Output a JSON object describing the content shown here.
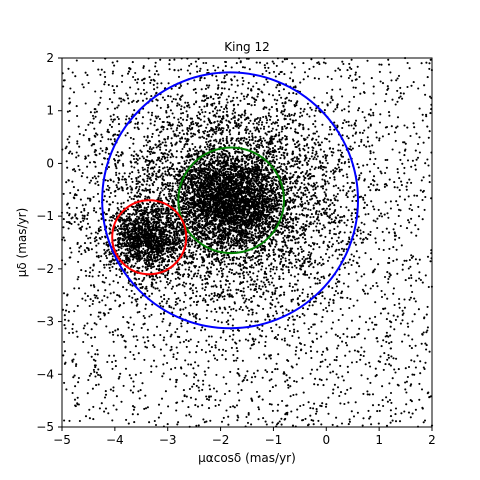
{
  "chart_data": {
    "type": "scatter",
    "title": "King 12",
    "xlabel": "μαcosδ (mas/yr)",
    "ylabel": "μδ (mas/yr)",
    "xlim": [
      -5,
      2
    ],
    "ylim": [
      -5,
      2
    ],
    "xticks": [
      -5,
      -4,
      -3,
      -2,
      -1,
      0,
      1,
      2
    ],
    "yticks": [
      -5,
      -4,
      -3,
      -2,
      -1,
      0,
      1,
      2
    ],
    "xtick_labels": [
      "−5",
      "−4",
      "−3",
      "−2",
      "−1",
      "0",
      "1",
      "2"
    ],
    "ytick_labels": [
      "−5",
      "−4",
      "−3",
      "−2",
      "−1",
      "0",
      "1",
      "2"
    ],
    "grid": false,
    "point_color": "#000000",
    "populations": [
      {
        "role": "background field",
        "distribution": "uniform",
        "count": 2600,
        "x_range": [
          -5,
          2
        ],
        "y_range": [
          -5,
          2
        ]
      },
      {
        "role": "broad field concentration",
        "distribution": "gaussian",
        "count": 4200,
        "center": [
          -1.85,
          -0.7
        ],
        "sigma": [
          1.2,
          1.05
        ]
      },
      {
        "role": "dense core",
        "distribution": "gaussian",
        "count": 2600,
        "center": [
          -1.8,
          -0.7
        ],
        "sigma": [
          0.5,
          0.42
        ]
      },
      {
        "role": "secondary clump",
        "distribution": "gaussian",
        "count": 1300,
        "center": [
          -3.4,
          -1.45
        ],
        "sigma": [
          0.35,
          0.3
        ]
      }
    ],
    "circles": [
      {
        "center": [
          -1.82,
          -0.7
        ],
        "radius": 2.42,
        "color": "#0000ff"
      },
      {
        "center": [
          -1.8,
          -0.7
        ],
        "radius": 1.0,
        "color": "#008000"
      },
      {
        "center": [
          -3.35,
          -1.4
        ],
        "radius": 0.7,
        "color": "#ff0000"
      }
    ]
  }
}
